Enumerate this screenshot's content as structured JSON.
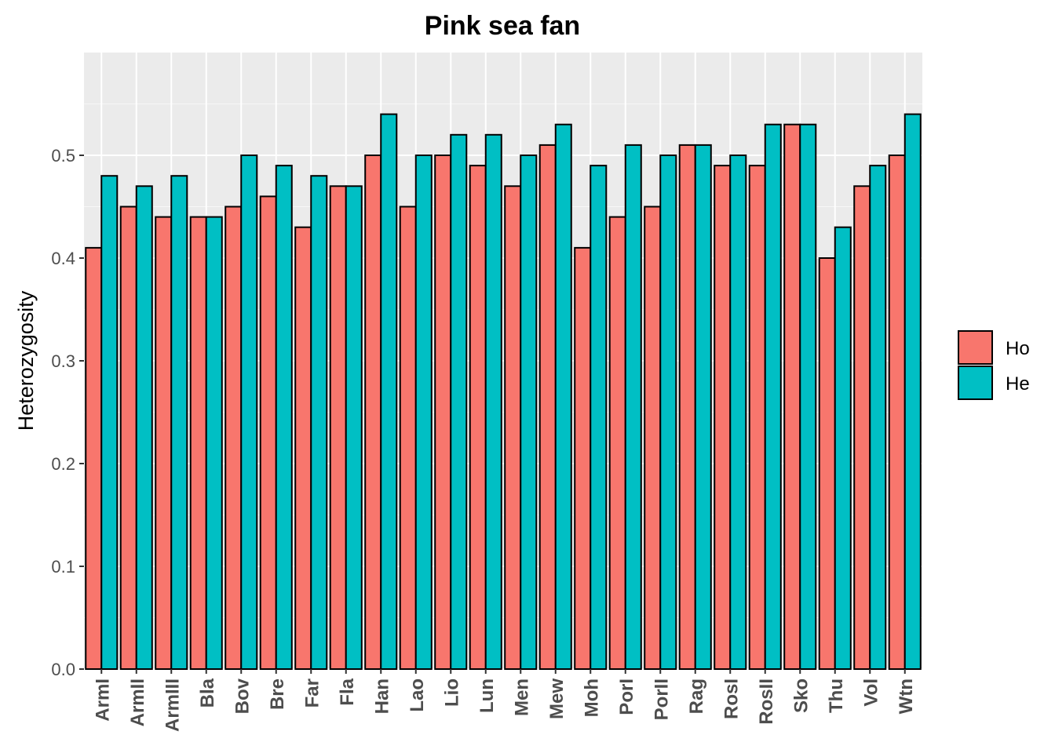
{
  "chart_data": {
    "type": "bar",
    "title": "Pink sea fan",
    "xlabel": "",
    "ylabel": "Heterozygosity",
    "ylim": [
      0,
      0.6
    ],
    "yticks": [
      0.0,
      0.1,
      0.2,
      0.3,
      0.4,
      0.5
    ],
    "ytick_labels": [
      "0.0",
      "0.1",
      "0.2",
      "0.3",
      "0.4",
      "0.5"
    ],
    "grid": true,
    "legend_position": "right",
    "categories": [
      "ArmI",
      "ArmII",
      "ArmIII",
      "Bla",
      "Bov",
      "Bre",
      "Far",
      "Fla",
      "Han",
      "Lao",
      "Lio",
      "Lun",
      "Men",
      "Mew",
      "Moh",
      "PorI",
      "PorII",
      "Rag",
      "RosI",
      "RosII",
      "Sko",
      "Thu",
      "Vol",
      "Wtn"
    ],
    "series": [
      {
        "name": "Ho",
        "color": "#F8766D",
        "values": [
          0.41,
          0.45,
          0.44,
          0.44,
          0.45,
          0.46,
          0.43,
          0.47,
          0.5,
          0.45,
          0.5,
          0.49,
          0.47,
          0.51,
          0.41,
          0.44,
          0.45,
          0.51,
          0.49,
          0.49,
          0.53,
          0.4,
          0.47,
          0.5
        ]
      },
      {
        "name": "He",
        "color": "#00BFC4",
        "values": [
          0.48,
          0.47,
          0.48,
          0.44,
          0.5,
          0.49,
          0.48,
          0.47,
          0.54,
          0.5,
          0.52,
          0.52,
          0.5,
          0.53,
          0.49,
          0.51,
          0.5,
          0.51,
          0.5,
          0.53,
          0.53,
          0.43,
          0.49,
          0.54
        ]
      }
    ]
  },
  "colors": {
    "panel_background": "#EBEBEB",
    "grid_major": "#FFFFFF",
    "bar_outline": "#000000"
  }
}
